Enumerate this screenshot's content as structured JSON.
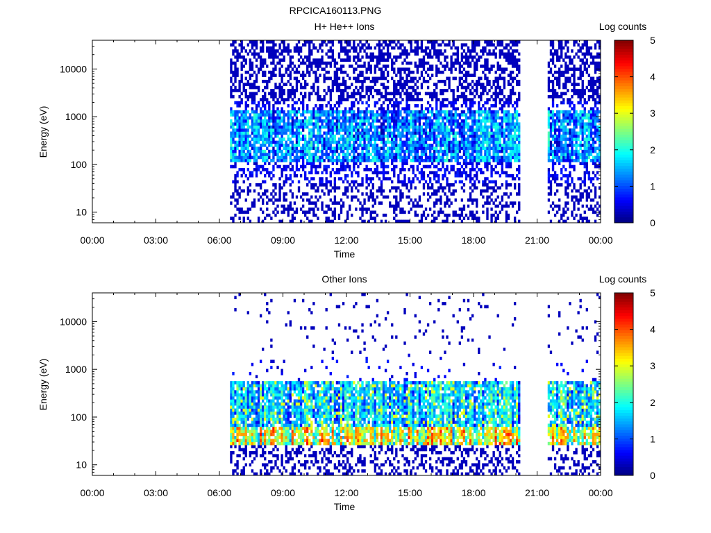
{
  "figure": {
    "title": "RPCICA160113.PNG"
  },
  "chart_data": [
    {
      "type": "heatmap",
      "title": "H+ He++ Ions",
      "xlabel": "Time",
      "ylabel": "Energy (eV)",
      "x_ticks": [
        "00:00",
        "03:00",
        "06:00",
        "09:00",
        "12:00",
        "15:00",
        "18:00",
        "21:00",
        "00:00"
      ],
      "xlim_hours": [
        0,
        24
      ],
      "y_ticks": [
        "10",
        "100",
        "1000",
        "10000"
      ],
      "y_tick_values": [
        10,
        100,
        1000,
        10000
      ],
      "ylim": [
        6,
        40000
      ],
      "y_scale": "log",
      "colorbar": {
        "label": "Log counts",
        "ticks": [
          "0",
          "1",
          "2",
          "3",
          "4",
          "5"
        ],
        "range": [
          0,
          5
        ],
        "colormap": "jet"
      },
      "data_gaps_hours": [
        [
          0,
          6.5
        ],
        [
          20.2,
          21.5
        ]
      ],
      "data_segments_hours": [
        [
          6.5,
          20.2
        ],
        [
          21.5,
          23.95
        ]
      ],
      "background_noise": {
        "energy_above_eV": 2000,
        "level_log_counts": 0.3,
        "fill_fraction": 0.5
      },
      "bands": [
        {
          "energy_low_eV": 110,
          "energy_high_eV": 1400,
          "peak_log_counts": 2.0,
          "typical_log_counts": 1.2
        }
      ],
      "low_energy_sparse_below_eV": 40
    },
    {
      "type": "heatmap",
      "title": "Other Ions",
      "xlabel": "Time",
      "ylabel": "Energy (eV)",
      "x_ticks": [
        "00:00",
        "03:00",
        "06:00",
        "09:00",
        "12:00",
        "15:00",
        "18:00",
        "21:00",
        "00:00"
      ],
      "xlim_hours": [
        0,
        24
      ],
      "y_ticks": [
        "10",
        "100",
        "1000",
        "10000"
      ],
      "y_tick_values": [
        10,
        100,
        1000,
        10000
      ],
      "ylim": [
        6,
        40000
      ],
      "y_scale": "log",
      "colorbar": {
        "label": "Log counts",
        "ticks": [
          "0",
          "1",
          "2",
          "3",
          "4",
          "5"
        ],
        "range": [
          0,
          5
        ],
        "colormap": "jet"
      },
      "data_gaps_hours": [
        [
          0,
          6.5
        ],
        [
          20.2,
          21.5
        ]
      ],
      "data_segments_hours": [
        [
          6.5,
          20.2
        ],
        [
          21.5,
          23.95
        ]
      ],
      "background_noise": {
        "energy_above_eV": 2000,
        "level_log_counts": 0.3,
        "fill_fraction": 0.05
      },
      "bands": [
        {
          "energy_low_eV": 28,
          "energy_high_eV": 60,
          "peak_log_counts": 3.6,
          "typical_log_counts": 2.8
        },
        {
          "energy_low_eV": 60,
          "energy_high_eV": 600,
          "peak_log_counts": 3.0,
          "typical_log_counts": 1.6
        }
      ],
      "low_energy_sparse_below_eV": 25
    }
  ]
}
